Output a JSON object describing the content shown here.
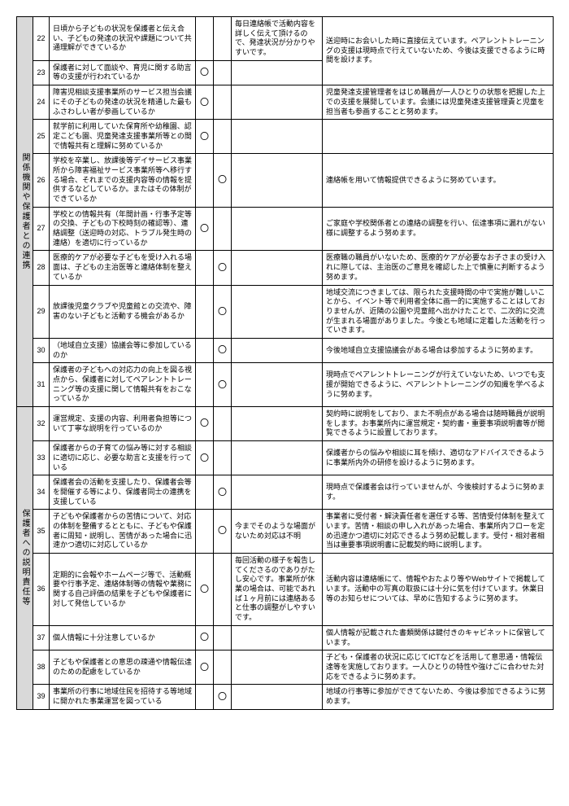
{
  "colors": {
    "border": "#000000",
    "section_bg": "#d9d9d9",
    "bg": "#ffffff",
    "text": "#000000"
  },
  "sections": {
    "s1": {
      "label": "関係機関や保護者との連携"
    },
    "s2": {
      "label": "保護者への説明責任等"
    }
  },
  "rows": {
    "r22": {
      "n": "22",
      "q": "日頃から子どもの状況を保護者と伝え合い、子どもの発達の状況や課題について共通理解ができているか",
      "c1": "",
      "c2": "",
      "mid": "毎日連絡帳で活動内容を詳しく伝えて頂けるので、発達状況が分かりやすいです。",
      "right": ""
    },
    "r23": {
      "n": "23",
      "q": "保護者に対して面談や、育児に関する助言等の支援が行われているか",
      "c1": "〇",
      "c2": "",
      "mid": "",
      "right": "送迎時にお会いした時に直接伝えています。ペアレントトレーニングの支援は現時点で行えていないため、今後は支援できるように時間を設けます。"
    },
    "r24": {
      "n": "24",
      "q": "障害児相談支援事業所のサービス担当会議にその子どもの発達の状況を精通した最もふさわしい者が参画しているか",
      "c1": "〇",
      "c2": "",
      "mid": "",
      "right": "児童発達支援管理者をはじめ職員が一人ひとりの状態を把握した上での支援を展開しています。会議には児童発達支援管理責と児童を担当者も参画することと努めます。"
    },
    "r25": {
      "n": "25",
      "q": "就学前に利用していた保育所や幼稚園、認定こども園、児童発達支援事業所等との間で情報共有と理解に努めているか",
      "c1": "〇",
      "c2": "",
      "mid": "",
      "right": ""
    },
    "r26": {
      "n": "26",
      "q": "学校を卒業し、放課後等デイサービス事業所から障害福祉サービス事業所等へ移行する場合、それまでの支援内容等の情報を提供するなどしているか。またはその体制ができているか",
      "c1": "",
      "c2": "〇",
      "mid": "",
      "right": "連絡帳を用いて情報提供できるように努めています。"
    },
    "r27": {
      "n": "27",
      "q": "学校との情報共有（年間計画・行事予定等の交換、子どもの下校時刻の確認等）、連絡調整（送迎時の対応、トラブル発生時の連絡）を適切に行っているか",
      "c1": "〇",
      "c2": "",
      "mid": "",
      "right": "ご家庭や学校関係者との連絡の調整を行い、伝達事項に漏れがない様に調整するよう努めます。"
    },
    "r28": {
      "n": "28",
      "q": "医療的ケアが必要な子どもを受け入れる場面は、子どもの主治医等と連絡体制を整えているか",
      "c1": "",
      "c2": "〇",
      "mid": "",
      "right": "医療職の職員がいないため、医療的ケアが必要なお子さまの受け入れに際しては、主治医のご意見を確認した上で慎重に判断するよう努めます。"
    },
    "r29": {
      "n": "29",
      "q": "放課後児童クラブや児童館との交流や、障害のない子どもと活動する機会があるか",
      "c1": "",
      "c2": "〇",
      "mid": "",
      "right": "地域交流につきましては、限られた支援時間の中で実施が難しいことから、イベント等で利用者全体に画一的に実施することはしておりませんが、近隣の公園や児童館へ出かけたことで、二次的に交流が生まれる場面がありました。今後とも地域に定着した活動を行っていきます。"
    },
    "r30": {
      "n": "30",
      "q": "（地域自立支援）協議会等に参加しているのか",
      "c1": "",
      "c2": "〇",
      "mid": "",
      "right": "今後地域自立支援協議会がある場合は参加するように努めます。"
    },
    "r31": {
      "n": "31",
      "q": "保護者の子どもへの対応力の向上を図る視点から、保護者に対してペアレントトレーニング等の支援に関して情報共有をおこなっているか",
      "c1": "",
      "c2": "〇",
      "mid": "",
      "right": "現時点でペアレントトレーニングが行えていないため、いつでも支援が開始できるように、ペアレントトレーニングの知識を学べるように努めます。"
    },
    "r32": {
      "n": "32",
      "q": "運営規定、支援の内容、利用者負担等について丁寧な説明を行っているのか",
      "c1": "〇",
      "c2": "",
      "mid": "",
      "right": "契約時に説明をしており、また不明点がある場合は随時職員が説明をします。お事業所内に運営規定・契約書・重要事項説明書等が閲覧できるように設置しております。"
    },
    "r33": {
      "n": "33",
      "q": "保護者からの子育ての悩み等に対する相談に適切に応じ、必要な助言と支援を行っている",
      "c1": "〇",
      "c2": "",
      "mid": "",
      "right": "保護者からの悩みや相談に耳を傾け、適切なアドバイスできるように事業所内外の研修を設けるように努めます。"
    },
    "r34": {
      "n": "34",
      "q": "保護者会の活動を支援したり、保護者会等を開催する等により、保護者同士の連携を支援している",
      "c1": "",
      "c2": "〇",
      "mid": "",
      "right": "現時点で保護者会は行っていませんが、今後検討するように努めます。"
    },
    "r35": {
      "n": "35",
      "q": "子どもや保護者からの苦情について、対応の体制を整備するとともに、子どもや保護者に周知・説明し、苦情があった場合に迅速かつ適切に対応しているか",
      "c1": "",
      "c2": "〇",
      "mid": "今までそのような場面がないため対応は不明",
      "right": "事業者に受付者・解決責任者を選任する等、苦情受付体制を整えています。苦情・相談の申し入れがあった場合、事業所内フローを定め迅速かつ適切に対応できるよう努め記載します。受付・相対者相当は重要事項説明書に記載契約時に説明します。"
    },
    "r36": {
      "n": "36",
      "q": "定期的に会報やホームページ等で、活動概要や行事予定、連絡体制等の情報や業務に関する自己評価の結果を子どもや保護者に対して発信しているか",
      "c1": "〇",
      "c2": "",
      "mid": "毎回活動の様子を報告してくださるのでありがたし安心です。事業所が休業の場合は、可能であれば１ヶ月前には連絡あると仕事の調整がしやすいです。",
      "right": "活動内容は連絡帳にて、情報やおたより等やWebサイトで掲載しています。活動中の写真の取扱には十分に気を付けています。休業日等のお知らせについては、早めに告知するように努めます。"
    },
    "r37": {
      "n": "37",
      "q": "個人情報に十分注意しているか",
      "c1": "〇",
      "c2": "",
      "mid": "",
      "right": "個人情報が記載された書類関係は鍵付きのキャビネットに保管しています。"
    },
    "r38": {
      "n": "38",
      "q": "子どもや保護者との意思の疎通や情報伝達のための配慮をしているか",
      "c1": "〇",
      "c2": "",
      "mid": "",
      "right": "子ども・保護者の状況に応じてICTなどを活用して意思通・情報伝達等を実施しております。一人ひとりの特性や強けごに合わせた対応をできるように努めます。"
    },
    "r39": {
      "n": "39",
      "q": "事業所の行事に地域住民を招待する等地域に開かれた事業運営を図っている",
      "c1": "",
      "c2": "〇",
      "mid": "",
      "right": "地域の行事等に参加ができてないため、今後は参加できるように努めます。"
    }
  }
}
